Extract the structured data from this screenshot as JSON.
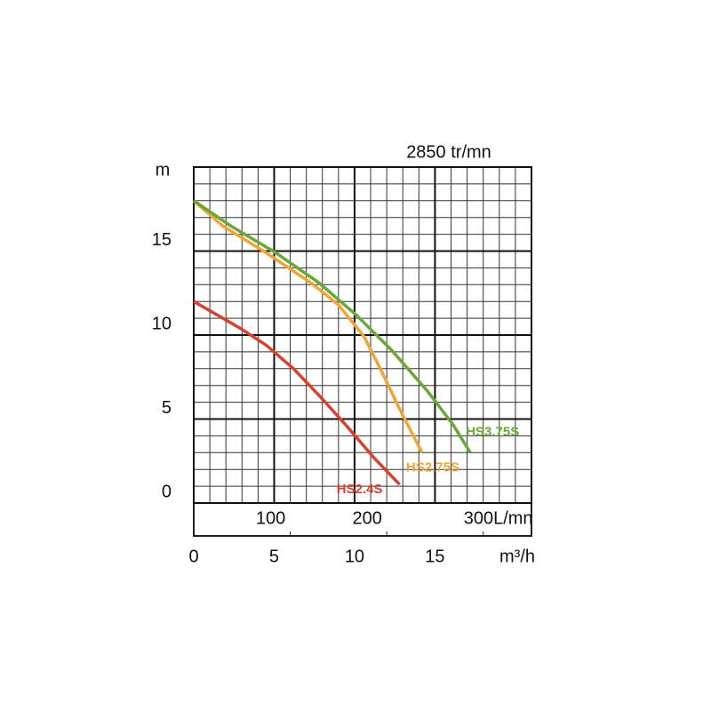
{
  "chart_data": {
    "type": "line",
    "title": "2850 tr/mn",
    "y_label": "m",
    "x_label": "m³/h",
    "xlim": [
      0,
      21
    ],
    "xticks": [
      0,
      5,
      10,
      15
    ],
    "xminorticks": [
      1,
      2,
      3,
      4,
      6,
      7,
      8,
      9,
      11,
      12,
      13,
      14,
      16,
      17,
      18,
      19,
      20
    ],
    "x2lim": [
      0,
      350
    ],
    "x2ticks": [
      100,
      200,
      {
        "value": 300,
        "label": "300L/mn"
      }
    ],
    "ylim": [
      0,
      20
    ],
    "yticks": [
      0,
      5,
      10,
      15
    ],
    "yminorticks": [
      1,
      2,
      3,
      4,
      6,
      7,
      8,
      9,
      11,
      12,
      13,
      14,
      16,
      17,
      18,
      19
    ],
    "grid": true,
    "series": [
      {
        "name": "HS2.4S",
        "color": "#d9402f",
        "x": [
          0,
          2.9,
          4.5,
          6.2,
          7.8,
          9.5,
          11.2,
          12.8
        ],
        "values": [
          12.0,
          10.4,
          9.4,
          8.0,
          6.4,
          4.6,
          2.7,
          1.1
        ]
      },
      {
        "name": "HS2.75S",
        "color": "#f0a535",
        "x": [
          0,
          1.8,
          4.5,
          7.3,
          9.0,
          10.6,
          11.7,
          12.8,
          14.2
        ],
        "values": [
          18.0,
          16.5,
          14.9,
          13.1,
          11.8,
          9.9,
          7.8,
          5.6,
          3.0
        ]
      },
      {
        "name": "HS3.75S",
        "color": "#6aa83a",
        "x": [
          0,
          2.3,
          5.1,
          7.8,
          10.1,
          12.3,
          14.5,
          16.1,
          17.2
        ],
        "values": [
          18.0,
          16.5,
          14.9,
          13.1,
          11.2,
          9.1,
          6.7,
          4.7,
          3.0
        ]
      }
    ]
  }
}
